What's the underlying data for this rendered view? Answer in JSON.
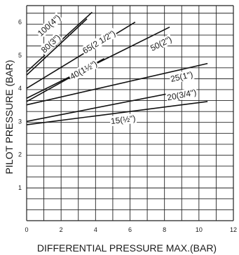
{
  "chart_data": {
    "type": "line",
    "xlabel": "DIFFERENTIAL PRESSURE MAX.(BAR)",
    "ylabel": "PILOT PRESSURE (BAR)",
    "xlim": [
      0,
      12
    ],
    "ylim": [
      0,
      6.5
    ],
    "x_ticks": [
      "0",
      "2",
      "4",
      "6",
      "8",
      "10",
      "12"
    ],
    "y_ticks": [
      "1",
      "2",
      "3",
      "4",
      "5",
      "6"
    ],
    "grid": true,
    "minor_grid": {
      "x_step": 1,
      "y_step": 0.33
    },
    "series": [
      {
        "name": "100(4\")",
        "x": [
          0,
          3.8
        ],
        "y": [
          4.5,
          6.3
        ],
        "label_at": [
          1.3,
          5.9
        ]
      },
      {
        "name": "80(3\")",
        "x": [
          0,
          3.5
        ],
        "y": [
          4.4,
          6.1
        ],
        "label_at": [
          1.4,
          5.35
        ]
      },
      {
        "name": "65(2 1/2\")",
        "x": [
          0,
          6.3
        ],
        "y": [
          4.0,
          6.0
        ],
        "label_at": [
          4.2,
          5.4
        ]
      },
      {
        "name": "50(2\")",
        "x": [
          0,
          8.3
        ],
        "y": [
          3.7,
          5.85
        ],
        "label_at": [
          7.8,
          5.35
        ]
      },
      {
        "name": "40(1½\")",
        "x": [
          0,
          4.5
        ],
        "y": [
          3.6,
          4.9
        ],
        "label_at": [
          3.3,
          4.55
        ]
      },
      {
        "name": "25(1\")",
        "x": [
          0,
          10.5
        ],
        "y": [
          3.5,
          4.75
        ],
        "label_at": [
          9.0,
          4.35
        ]
      },
      {
        "name": "20(3/4\")",
        "x": [
          0,
          9.8
        ],
        "y": [
          3.0,
          4.0
        ],
        "label_at": [
          9.0,
          3.8
        ]
      },
      {
        "name": "15(½\")",
        "x": [
          0,
          10.5
        ],
        "y": [
          2.9,
          3.6
        ],
        "label_at": [
          5.6,
          3.05
        ]
      }
    ]
  }
}
